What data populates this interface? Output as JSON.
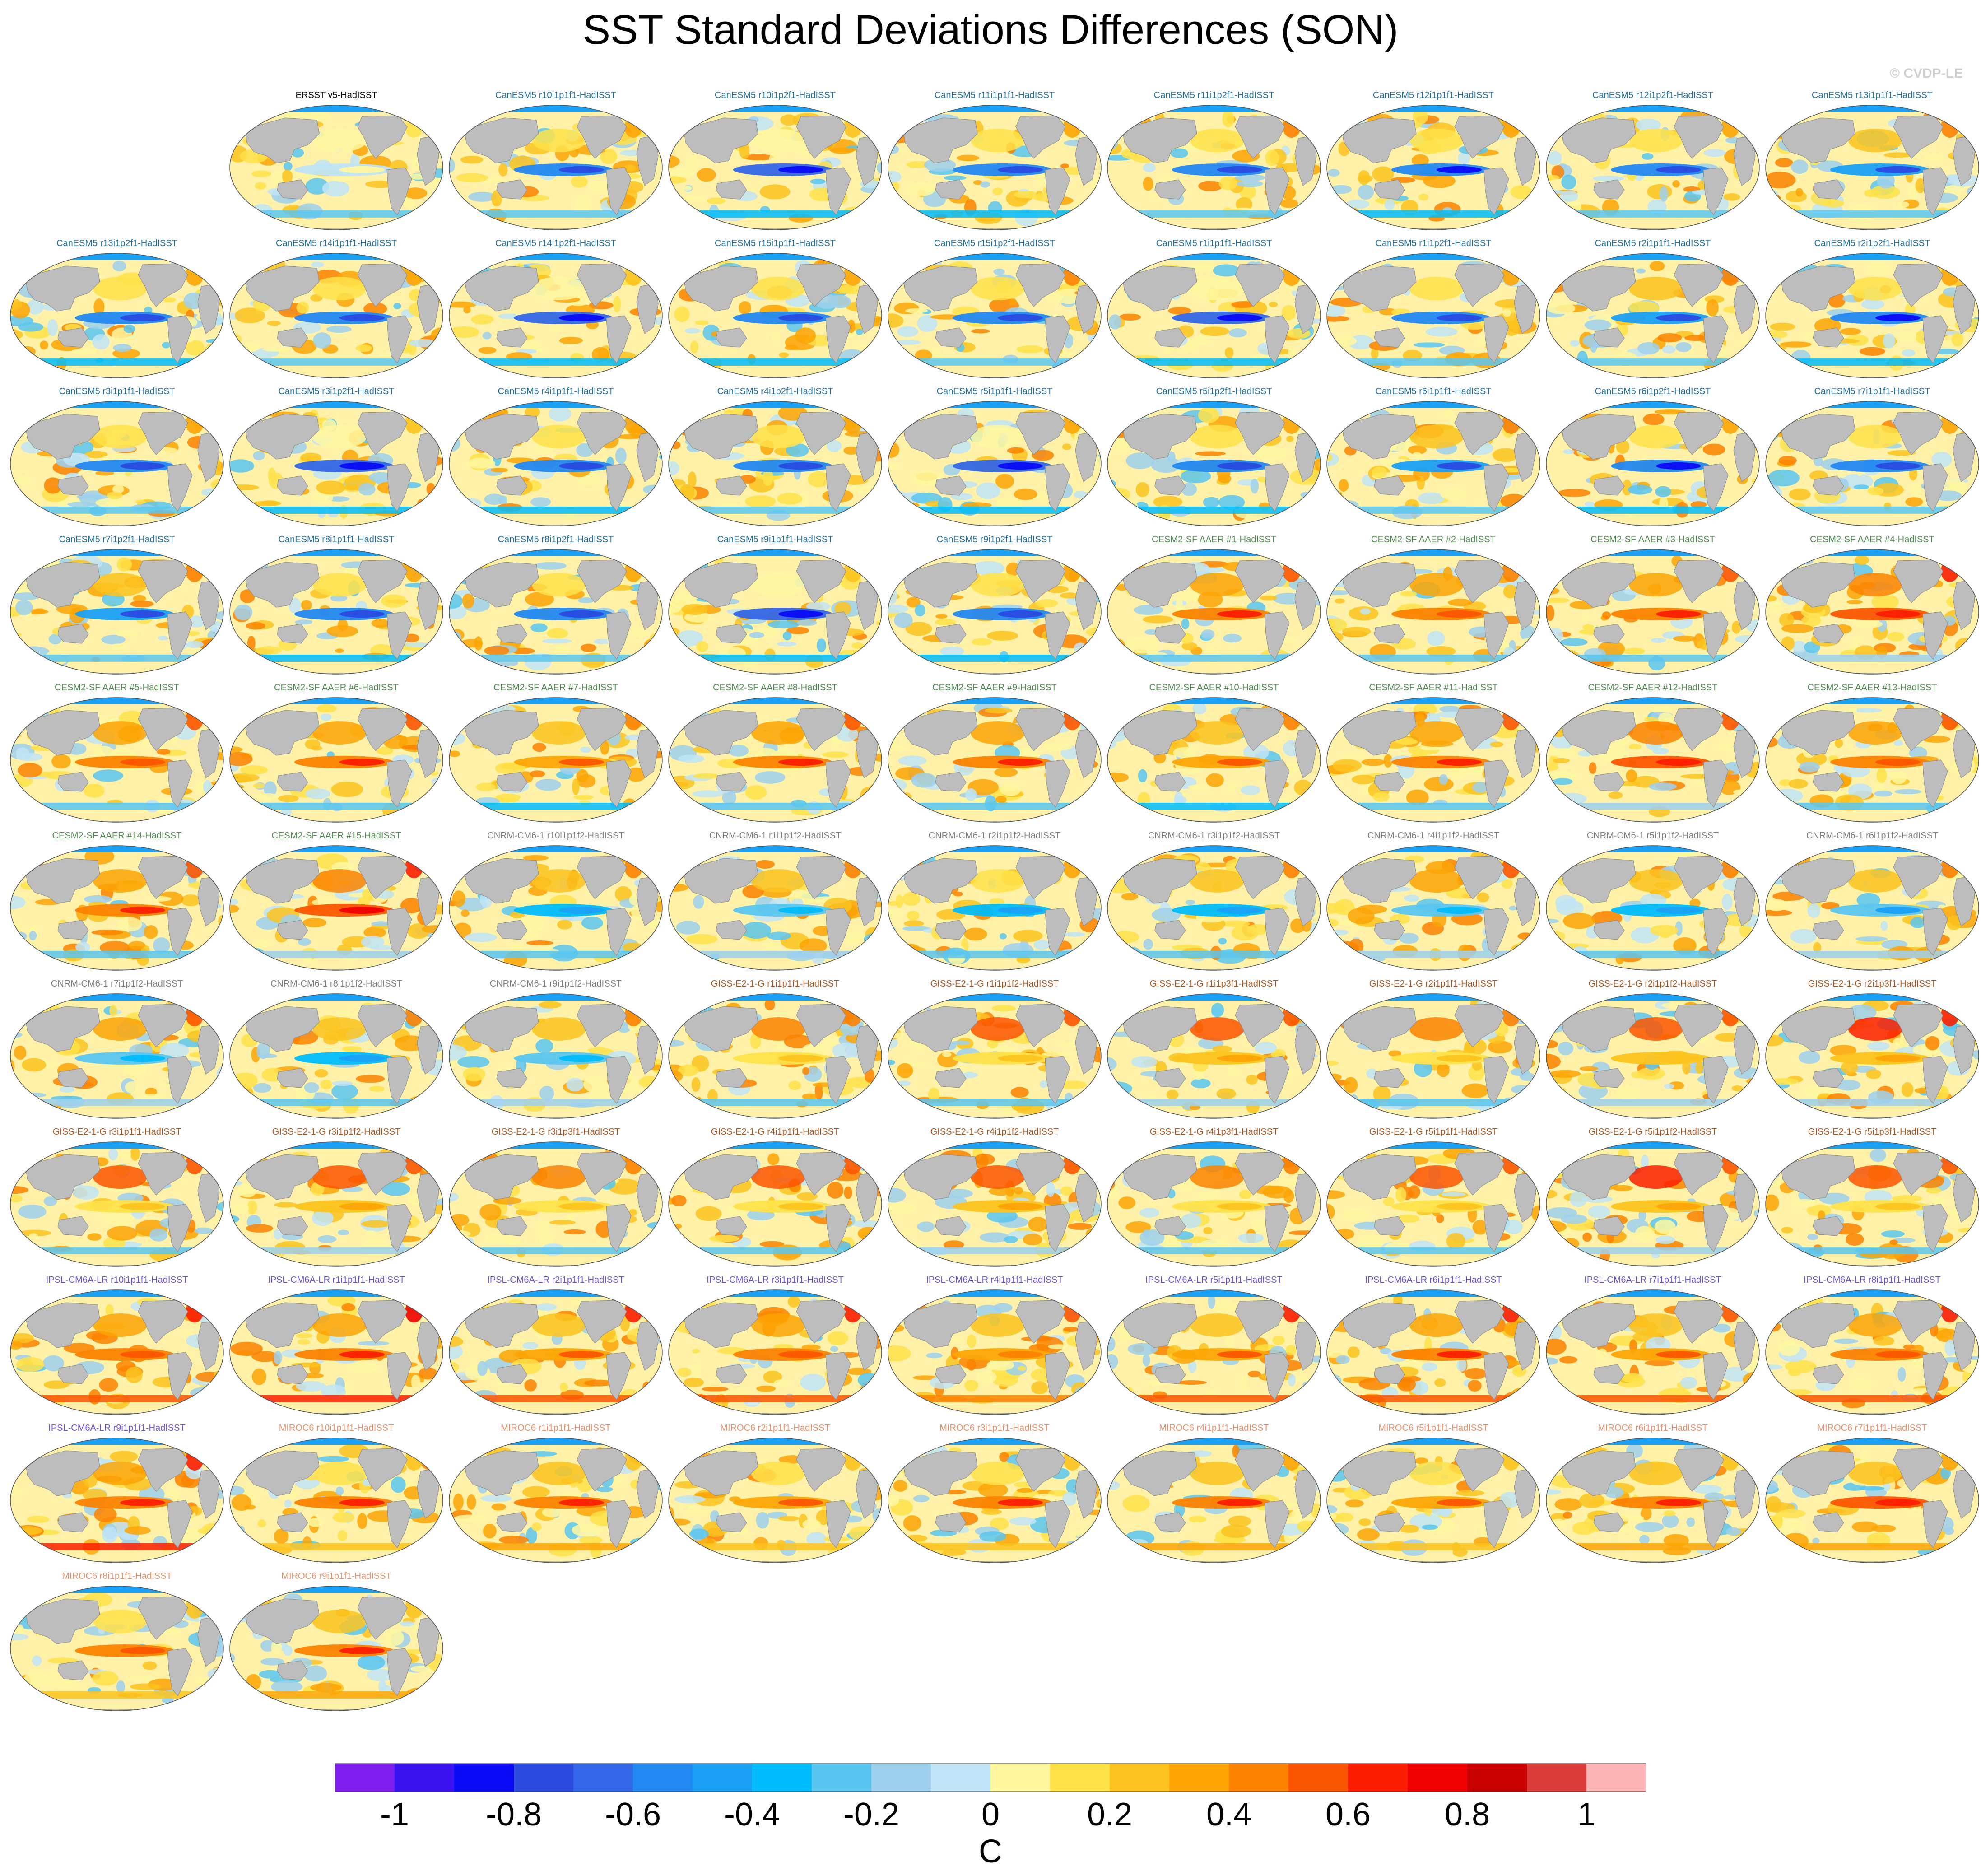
{
  "chart_data": {
    "type": "heatmap",
    "title": "SST Standard Deviations Differences (SON)",
    "watermark": "© CVDP-LE",
    "colorbar": {
      "units": "C",
      "tick_labels": [
        "-1",
        "-0.8",
        "-0.6",
        "-0.4",
        "-0.2",
        "0",
        "0.2",
        "0.4",
        "0.6",
        "0.8",
        "1"
      ],
      "range": [
        -1.1,
        1.1
      ],
      "colors": [
        "#7f1fee",
        "#3a12f0",
        "#0a0af5",
        "#2a4ae0",
        "#3366e6",
        "#2288f2",
        "#1aa0f5",
        "#00bcfa",
        "#5ac6f0",
        "#9ed0ee",
        "#bfe4f6",
        "#fff7a0",
        "#ffe24a",
        "#fcc31e",
        "#fca505",
        "#fc8200",
        "#fc5500",
        "#fc1e00",
        "#f00000",
        "#c80000",
        "#dc3c3c",
        "#fcb4b4"
      ]
    },
    "colors": {
      "ocean_neutral": "#fff2a8",
      "land": "#bdbdbd",
      "coast": "#8a8a8a"
    },
    "panels": [
      {
        "label": "ERSST v5-HadISST",
        "group": "obs"
      },
      {
        "label": "CanESM5 r10i1p1f1-HadISST",
        "group": "canesm"
      },
      {
        "label": "CanESM5 r10i1p2f1-HadISST",
        "group": "canesm"
      },
      {
        "label": "CanESM5 r11i1p1f1-HadISST",
        "group": "canesm"
      },
      {
        "label": "CanESM5 r11i1p2f1-HadISST",
        "group": "canesm"
      },
      {
        "label": "CanESM5 r12i1p1f1-HadISST",
        "group": "canesm"
      },
      {
        "label": "CanESM5 r12i1p2f1-HadISST",
        "group": "canesm"
      },
      {
        "label": "CanESM5 r13i1p1f1-HadISST",
        "group": "canesm"
      },
      {
        "label": "CanESM5 r13i1p2f1-HadISST",
        "group": "canesm"
      },
      {
        "label": "CanESM5 r14i1p1f1-HadISST",
        "group": "canesm"
      },
      {
        "label": "CanESM5 r14i1p2f1-HadISST",
        "group": "canesm"
      },
      {
        "label": "CanESM5 r15i1p1f1-HadISST",
        "group": "canesm"
      },
      {
        "label": "CanESM5 r15i1p2f1-HadISST",
        "group": "canesm"
      },
      {
        "label": "CanESM5 r1i1p1f1-HadISST",
        "group": "canesm"
      },
      {
        "label": "CanESM5 r1i1p2f1-HadISST",
        "group": "canesm"
      },
      {
        "label": "CanESM5 r2i1p1f1-HadISST",
        "group": "canesm"
      },
      {
        "label": "CanESM5 r2i1p2f1-HadISST",
        "group": "canesm"
      },
      {
        "label": "CanESM5 r3i1p1f1-HadISST",
        "group": "canesm"
      },
      {
        "label": "CanESM5 r3i1p2f1-HadISST",
        "group": "canesm"
      },
      {
        "label": "CanESM5 r4i1p1f1-HadISST",
        "group": "canesm"
      },
      {
        "label": "CanESM5 r4i1p2f1-HadISST",
        "group": "canesm"
      },
      {
        "label": "CanESM5 r5i1p1f1-HadISST",
        "group": "canesm"
      },
      {
        "label": "CanESM5 r5i1p2f1-HadISST",
        "group": "canesm"
      },
      {
        "label": "CanESM5 r6i1p1f1-HadISST",
        "group": "canesm"
      },
      {
        "label": "CanESM5 r6i1p2f1-HadISST",
        "group": "canesm"
      },
      {
        "label": "CanESM5 r7i1p1f1-HadISST",
        "group": "canesm"
      },
      {
        "label": "CanESM5 r7i1p2f1-HadISST",
        "group": "canesm"
      },
      {
        "label": "CanESM5 r8i1p1f1-HadISST",
        "group": "canesm"
      },
      {
        "label": "CanESM5 r8i1p2f1-HadISST",
        "group": "canesm"
      },
      {
        "label": "CanESM5 r9i1p1f1-HadISST",
        "group": "canesm"
      },
      {
        "label": "CanESM5 r9i1p2f1-HadISST",
        "group": "canesm"
      },
      {
        "label": "CESM2-SF AAER #1-HadISST",
        "group": "cesm"
      },
      {
        "label": "CESM2-SF AAER #2-HadISST",
        "group": "cesm"
      },
      {
        "label": "CESM2-SF AAER #3-HadISST",
        "group": "cesm"
      },
      {
        "label": "CESM2-SF AAER #4-HadISST",
        "group": "cesm"
      },
      {
        "label": "CESM2-SF AAER #5-HadISST",
        "group": "cesm"
      },
      {
        "label": "CESM2-SF AAER #6-HadISST",
        "group": "cesm"
      },
      {
        "label": "CESM2-SF AAER #7-HadISST",
        "group": "cesm"
      },
      {
        "label": "CESM2-SF AAER #8-HadISST",
        "group": "cesm"
      },
      {
        "label": "CESM2-SF AAER #9-HadISST",
        "group": "cesm"
      },
      {
        "label": "CESM2-SF AAER #10-HadISST",
        "group": "cesm"
      },
      {
        "label": "CESM2-SF AAER #11-HadISST",
        "group": "cesm"
      },
      {
        "label": "CESM2-SF AAER #12-HadISST",
        "group": "cesm"
      },
      {
        "label": "CESM2-SF AAER #13-HadISST",
        "group": "cesm"
      },
      {
        "label": "CESM2-SF AAER #14-HadISST",
        "group": "cesm"
      },
      {
        "label": "CESM2-SF AAER #15-HadISST",
        "group": "cesm"
      },
      {
        "label": "CNRM-CM6-1 r10i1p1f2-HadISST",
        "group": "cnrm"
      },
      {
        "label": "CNRM-CM6-1 r1i1p1f2-HadISST",
        "group": "cnrm"
      },
      {
        "label": "CNRM-CM6-1 r2i1p1f2-HadISST",
        "group": "cnrm"
      },
      {
        "label": "CNRM-CM6-1 r3i1p1f2-HadISST",
        "group": "cnrm"
      },
      {
        "label": "CNRM-CM6-1 r4i1p1f2-HadISST",
        "group": "cnrm"
      },
      {
        "label": "CNRM-CM6-1 r5i1p1f2-HadISST",
        "group": "cnrm"
      },
      {
        "label": "CNRM-CM6-1 r6i1p1f2-HadISST",
        "group": "cnrm"
      },
      {
        "label": "CNRM-CM6-1 r7i1p1f2-HadISST",
        "group": "cnrm"
      },
      {
        "label": "CNRM-CM6-1 r8i1p1f2-HadISST",
        "group": "cnrm"
      },
      {
        "label": "CNRM-CM6-1 r9i1p1f2-HadISST",
        "group": "cnrm"
      },
      {
        "label": "GISS-E2-1-G r1i1p1f1-HadISST",
        "group": "giss"
      },
      {
        "label": "GISS-E2-1-G r1i1p1f2-HadISST",
        "group": "giss"
      },
      {
        "label": "GISS-E2-1-G r1i1p3f1-HadISST",
        "group": "giss"
      },
      {
        "label": "GISS-E2-1-G r2i1p1f1-HadISST",
        "group": "giss"
      },
      {
        "label": "GISS-E2-1-G r2i1p1f2-HadISST",
        "group": "giss"
      },
      {
        "label": "GISS-E2-1-G r2i1p3f1-HadISST",
        "group": "giss"
      },
      {
        "label": "GISS-E2-1-G r3i1p1f1-HadISST",
        "group": "giss"
      },
      {
        "label": "GISS-E2-1-G r3i1p1f2-HadISST",
        "group": "giss"
      },
      {
        "label": "GISS-E2-1-G r3i1p3f1-HadISST",
        "group": "giss"
      },
      {
        "label": "GISS-E2-1-G r4i1p1f1-HadISST",
        "group": "giss"
      },
      {
        "label": "GISS-E2-1-G r4i1p1f2-HadISST",
        "group": "giss"
      },
      {
        "label": "GISS-E2-1-G r4i1p3f1-HadISST",
        "group": "giss"
      },
      {
        "label": "GISS-E2-1-G r5i1p1f1-HadISST",
        "group": "giss"
      },
      {
        "label": "GISS-E2-1-G r5i1p1f2-HadISST",
        "group": "giss"
      },
      {
        "label": "GISS-E2-1-G r5i1p3f1-HadISST",
        "group": "giss"
      },
      {
        "label": "IPSL-CM6A-LR r10i1p1f1-HadISST",
        "group": "ipsl"
      },
      {
        "label": "IPSL-CM6A-LR r1i1p1f1-HadISST",
        "group": "ipsl"
      },
      {
        "label": "IPSL-CM6A-LR r2i1p1f1-HadISST",
        "group": "ipsl"
      },
      {
        "label": "IPSL-CM6A-LR r3i1p1f1-HadISST",
        "group": "ipsl"
      },
      {
        "label": "IPSL-CM6A-LR r4i1p1f1-HadISST",
        "group": "ipsl"
      },
      {
        "label": "IPSL-CM6A-LR r5i1p1f1-HadISST",
        "group": "ipsl"
      },
      {
        "label": "IPSL-CM6A-LR r6i1p1f1-HadISST",
        "group": "ipsl"
      },
      {
        "label": "IPSL-CM6A-LR r7i1p1f1-HadISST",
        "group": "ipsl"
      },
      {
        "label": "IPSL-CM6A-LR r8i1p1f1-HadISST",
        "group": "ipsl"
      },
      {
        "label": "IPSL-CM6A-LR r9i1p1f1-HadISST",
        "group": "ipsl"
      },
      {
        "label": "MIROC6 r10i1p1f1-HadISST",
        "group": "miroc"
      },
      {
        "label": "MIROC6 r1i1p1f1-HadISST",
        "group": "miroc"
      },
      {
        "label": "MIROC6 r2i1p1f1-HadISST",
        "group": "miroc"
      },
      {
        "label": "MIROC6 r3i1p1f1-HadISST",
        "group": "miroc"
      },
      {
        "label": "MIROC6 r4i1p1f1-HadISST",
        "group": "miroc"
      },
      {
        "label": "MIROC6 r5i1p1f1-HadISST",
        "group": "miroc"
      },
      {
        "label": "MIROC6 r6i1p1f1-HadISST",
        "group": "miroc"
      },
      {
        "label": "MIROC6 r7i1p1f1-HadISST",
        "group": "miroc"
      },
      {
        "label": "MIROC6 r8i1p1f1-HadISST",
        "group": "miroc"
      },
      {
        "label": "MIROC6 r9i1p1f1-HadISST",
        "group": "miroc"
      }
    ],
    "group_colors": {
      "obs": "#000000",
      "canesm": "#1f6f9a",
      "cesm": "#4e8a4e",
      "cnrm": "#7a7a7a",
      "giss": "#a3521c",
      "ipsl": "#6a4ec8",
      "miroc": "#e0906a"
    },
    "group_style": {
      "obs": {
        "eq": 0.02,
        "np": 0.05,
        "nh": 0.08,
        "ant": -0.25
      },
      "canesm": {
        "eq": -0.55,
        "np": 0.15,
        "nh": 0.2,
        "ant": -0.3
      },
      "cesm": {
        "eq": 0.45,
        "np": 0.35,
        "nh": 0.3,
        "ant": -0.25
      },
      "cnrm": {
        "eq": -0.3,
        "np": 0.25,
        "nh": 0.25,
        "ant": -0.2
      },
      "giss": {
        "eq": 0.2,
        "np": 0.55,
        "nh": 0.3,
        "ant": -0.2
      },
      "ipsl": {
        "eq": 0.4,
        "np": 0.3,
        "nh": 0.35,
        "ant": 0.55
      },
      "miroc": {
        "eq": 0.45,
        "np": 0.2,
        "nh": 0.15,
        "ant": 0.3
      }
    }
  }
}
